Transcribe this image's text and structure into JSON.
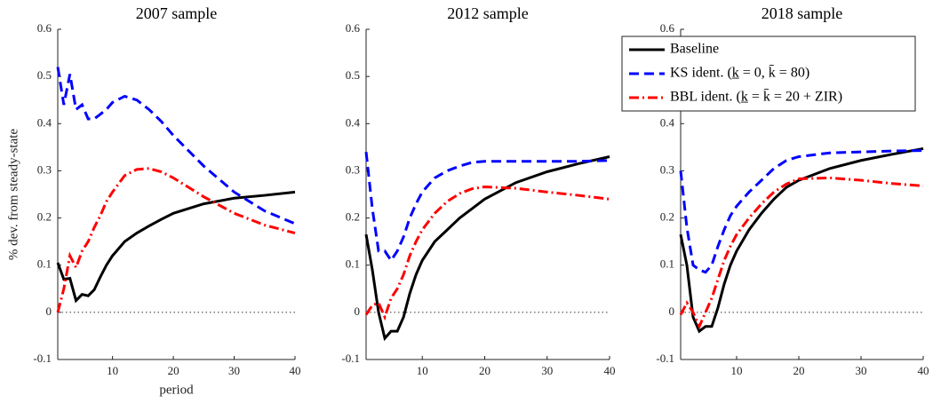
{
  "chart_data": [
    {
      "type": "line",
      "title": "2007 sample",
      "xlabel": "period",
      "ylabel": "% dev. from steady-state",
      "x": [
        1,
        2,
        3,
        4,
        5,
        6,
        7,
        8,
        9,
        10,
        12,
        14,
        16,
        18,
        20,
        25,
        30,
        35,
        40
      ],
      "xlim": [
        1,
        40
      ],
      "xticks": [
        10,
        20,
        30,
        40
      ],
      "ylim": [
        -0.1,
        0.6
      ],
      "yticks": [
        -0.1,
        0,
        0.1,
        0.2,
        0.3,
        0.4,
        0.5,
        0.6
      ],
      "zero_line": true,
      "series": [
        {
          "color": "#000000",
          "style": "solid",
          "values": [
            0.105,
            0.07,
            0.072,
            0.025,
            0.038,
            0.035,
            0.048,
            0.075,
            0.1,
            0.12,
            0.15,
            0.168,
            0.183,
            0.197,
            0.21,
            0.23,
            0.242,
            0.248,
            0.255
          ]
        },
        {
          "color": "#0000ff",
          "style": "dashed",
          "values": [
            0.52,
            0.44,
            0.505,
            0.43,
            0.44,
            0.41,
            0.41,
            0.42,
            0.43,
            0.445,
            0.458,
            0.45,
            0.43,
            0.405,
            0.375,
            0.31,
            0.255,
            0.215,
            0.188
          ]
        },
        {
          "color": "#ff0000",
          "style": "dashdot",
          "values": [
            0.0,
            0.05,
            0.12,
            0.095,
            0.13,
            0.15,
            0.18,
            0.205,
            0.235,
            0.255,
            0.29,
            0.303,
            0.305,
            0.298,
            0.285,
            0.245,
            0.21,
            0.185,
            0.168
          ]
        }
      ]
    },
    {
      "type": "line",
      "title": "2012 sample",
      "legend": "upper right",
      "x": [
        1,
        2,
        3,
        4,
        5,
        6,
        7,
        8,
        9,
        10,
        12,
        14,
        16,
        18,
        20,
        25,
        30,
        35,
        40
      ],
      "xlim": [
        1,
        40
      ],
      "xticks": [
        10,
        20,
        30,
        40
      ],
      "ylim": [
        -0.1,
        0.6
      ],
      "yticks": [
        -0.1,
        0,
        0.1,
        0.2,
        0.3,
        0.4,
        0.5,
        0.6
      ],
      "zero_line": true,
      "series": [
        {
          "name": "Baseline",
          "color": "#000000",
          "style": "solid",
          "values": [
            0.165,
            0.09,
            0.0,
            -0.055,
            -0.04,
            -0.04,
            -0.01,
            0.04,
            0.08,
            0.11,
            0.15,
            0.175,
            0.2,
            0.22,
            0.24,
            0.275,
            0.298,
            0.315,
            0.33
          ]
        },
        {
          "name": "KS ident. (k̲ = 0, k̄ = 80)",
          "color": "#0000ff",
          "style": "dashed",
          "values": [
            0.34,
            0.22,
            0.13,
            0.13,
            0.11,
            0.13,
            0.16,
            0.2,
            0.23,
            0.255,
            0.285,
            0.3,
            0.31,
            0.318,
            0.32,
            0.32,
            0.32,
            0.32,
            0.322
          ]
        },
        {
          "name": "BBL ident. (k̲ = k̄ = 20 + ZIR)",
          "color": "#ff0000",
          "style": "dashdot",
          "values": [
            -0.005,
            0.015,
            0.02,
            -0.01,
            0.03,
            0.05,
            0.08,
            0.12,
            0.15,
            0.175,
            0.21,
            0.235,
            0.252,
            0.262,
            0.266,
            0.263,
            0.255,
            0.248,
            0.24
          ]
        }
      ]
    },
    {
      "type": "line",
      "title": "2018 sample",
      "x": [
        1,
        2,
        3,
        4,
        5,
        6,
        7,
        8,
        9,
        10,
        12,
        14,
        16,
        18,
        20,
        25,
        30,
        35,
        40
      ],
      "xlim": [
        1,
        40
      ],
      "xticks": [
        10,
        20,
        30,
        40
      ],
      "ylim": [
        -0.1,
        0.6
      ],
      "yticks": [
        -0.1,
        0,
        0.1,
        0.2,
        0.3,
        0.4,
        0.5,
        0.6
      ],
      "zero_line": true,
      "series": [
        {
          "color": "#000000",
          "style": "solid",
          "values": [
            0.165,
            0.1,
            -0.01,
            -0.04,
            -0.03,
            -0.03,
            0.01,
            0.06,
            0.1,
            0.13,
            0.175,
            0.21,
            0.24,
            0.265,
            0.28,
            0.305,
            0.322,
            0.335,
            0.347
          ]
        },
        {
          "color": "#0000ff",
          "style": "dashed",
          "values": [
            0.3,
            0.18,
            0.1,
            0.09,
            0.085,
            0.1,
            0.14,
            0.175,
            0.205,
            0.225,
            0.255,
            0.28,
            0.305,
            0.322,
            0.33,
            0.338,
            0.34,
            0.342,
            0.343
          ]
        },
        {
          "color": "#ff0000",
          "style": "dashdot",
          "values": [
            -0.005,
            0.02,
            0.0,
            -0.03,
            0.0,
            0.03,
            0.07,
            0.11,
            0.14,
            0.165,
            0.2,
            0.23,
            0.255,
            0.272,
            0.283,
            0.285,
            0.28,
            0.273,
            0.268
          ]
        }
      ]
    }
  ]
}
